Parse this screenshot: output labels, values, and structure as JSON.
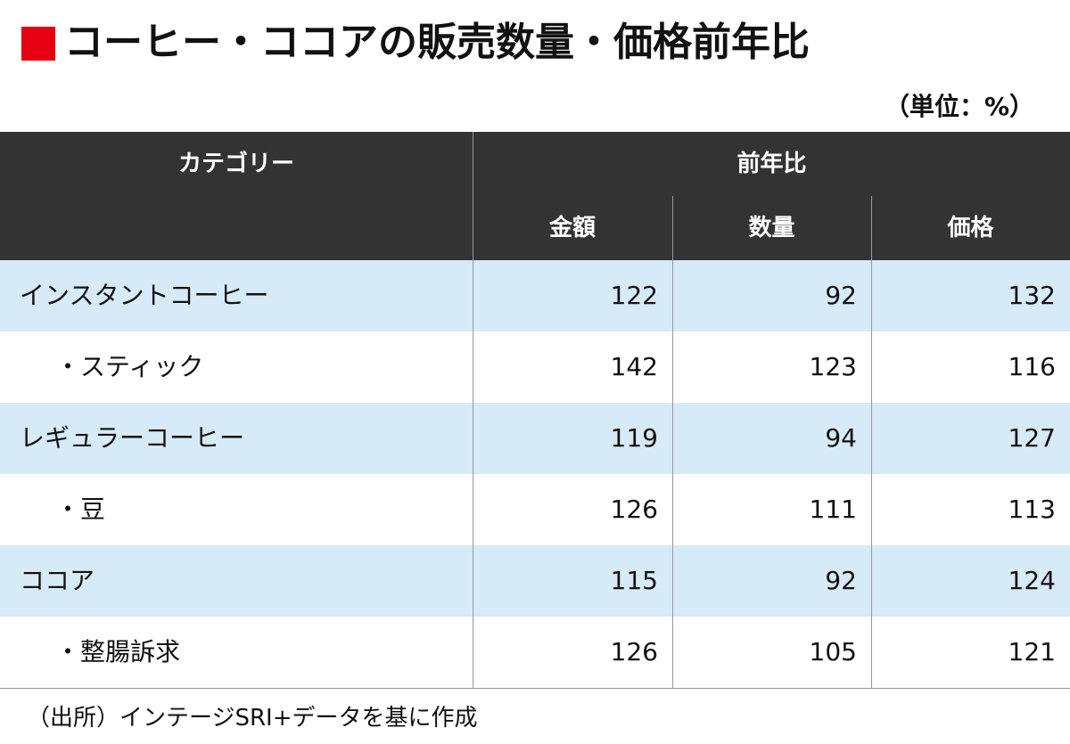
{
  "title": "コーヒー・ココアの販売数量・価格前年比",
  "unit": "（単位：%）",
  "table": {
    "header": {
      "category": "カテゴリー",
      "group": "前年比",
      "columns": [
        "金額",
        "数量",
        "価格"
      ]
    },
    "rows": [
      {
        "label": "インスタントコーヒー",
        "values": [
          122,
          92,
          132
        ]
      },
      {
        "label": "・スティック",
        "values": [
          142,
          123,
          116
        ]
      },
      {
        "label": "レギュラーコーヒー",
        "values": [
          119,
          94,
          127
        ]
      },
      {
        "label": "・豆",
        "values": [
          126,
          111,
          113
        ]
      },
      {
        "label": "ココア",
        "values": [
          115,
          92,
          124
        ]
      },
      {
        "label": "・整腸訴求",
        "values": [
          126,
          105,
          121
        ]
      }
    ]
  },
  "source": "（出所）インテージSRI+データを基に作成"
}
